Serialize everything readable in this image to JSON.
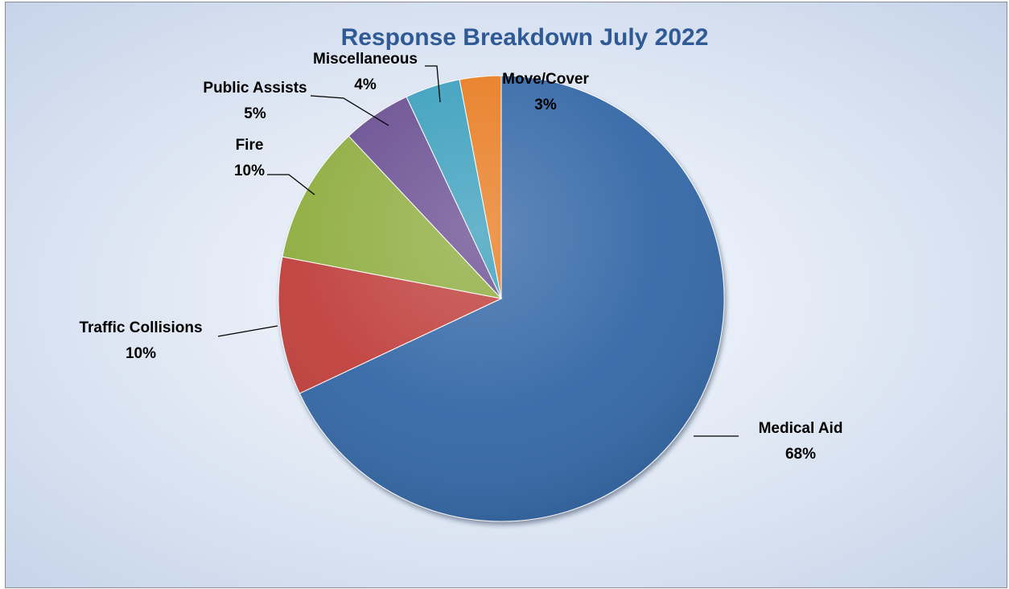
{
  "chart_data": {
    "type": "pie",
    "title": "Response Breakdown July 2022",
    "slices": [
      {
        "label": "Medical Aid",
        "value": 68,
        "display": "68%",
        "color": "#3567a7"
      },
      {
        "label": "Traffic Collisions",
        "value": 10,
        "display": "10%",
        "color": "#c0403c"
      },
      {
        "label": "Fire",
        "value": 10,
        "display": "10%",
        "color": "#8fad3f"
      },
      {
        "label": "Public Assists",
        "value": 5,
        "display": "5%",
        "color": "#6b4f92"
      },
      {
        "label": "Miscellaneous",
        "value": 4,
        "display": "4%",
        "color": "#3a9fbd"
      },
      {
        "label": "Move/Cover",
        "value": 3,
        "display": "3%",
        "color": "#e87c23"
      }
    ],
    "legend": "none",
    "data_labels": "outside with leader lines"
  }
}
